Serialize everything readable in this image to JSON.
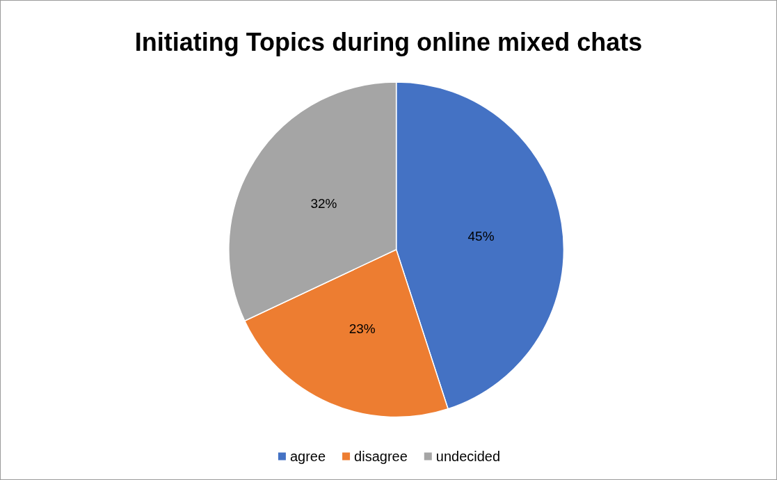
{
  "chart_data": {
    "type": "pie",
    "title": "Initiating Topics during online mixed chats",
    "categories": [
      "agree",
      "disagree",
      "undecided"
    ],
    "values": [
      45,
      23,
      32
    ],
    "value_labels": [
      "45%",
      "23%",
      "32%"
    ],
    "colors": [
      "#4472c4",
      "#ed7d31",
      "#a5a5a5"
    ],
    "legend": "bottom"
  }
}
